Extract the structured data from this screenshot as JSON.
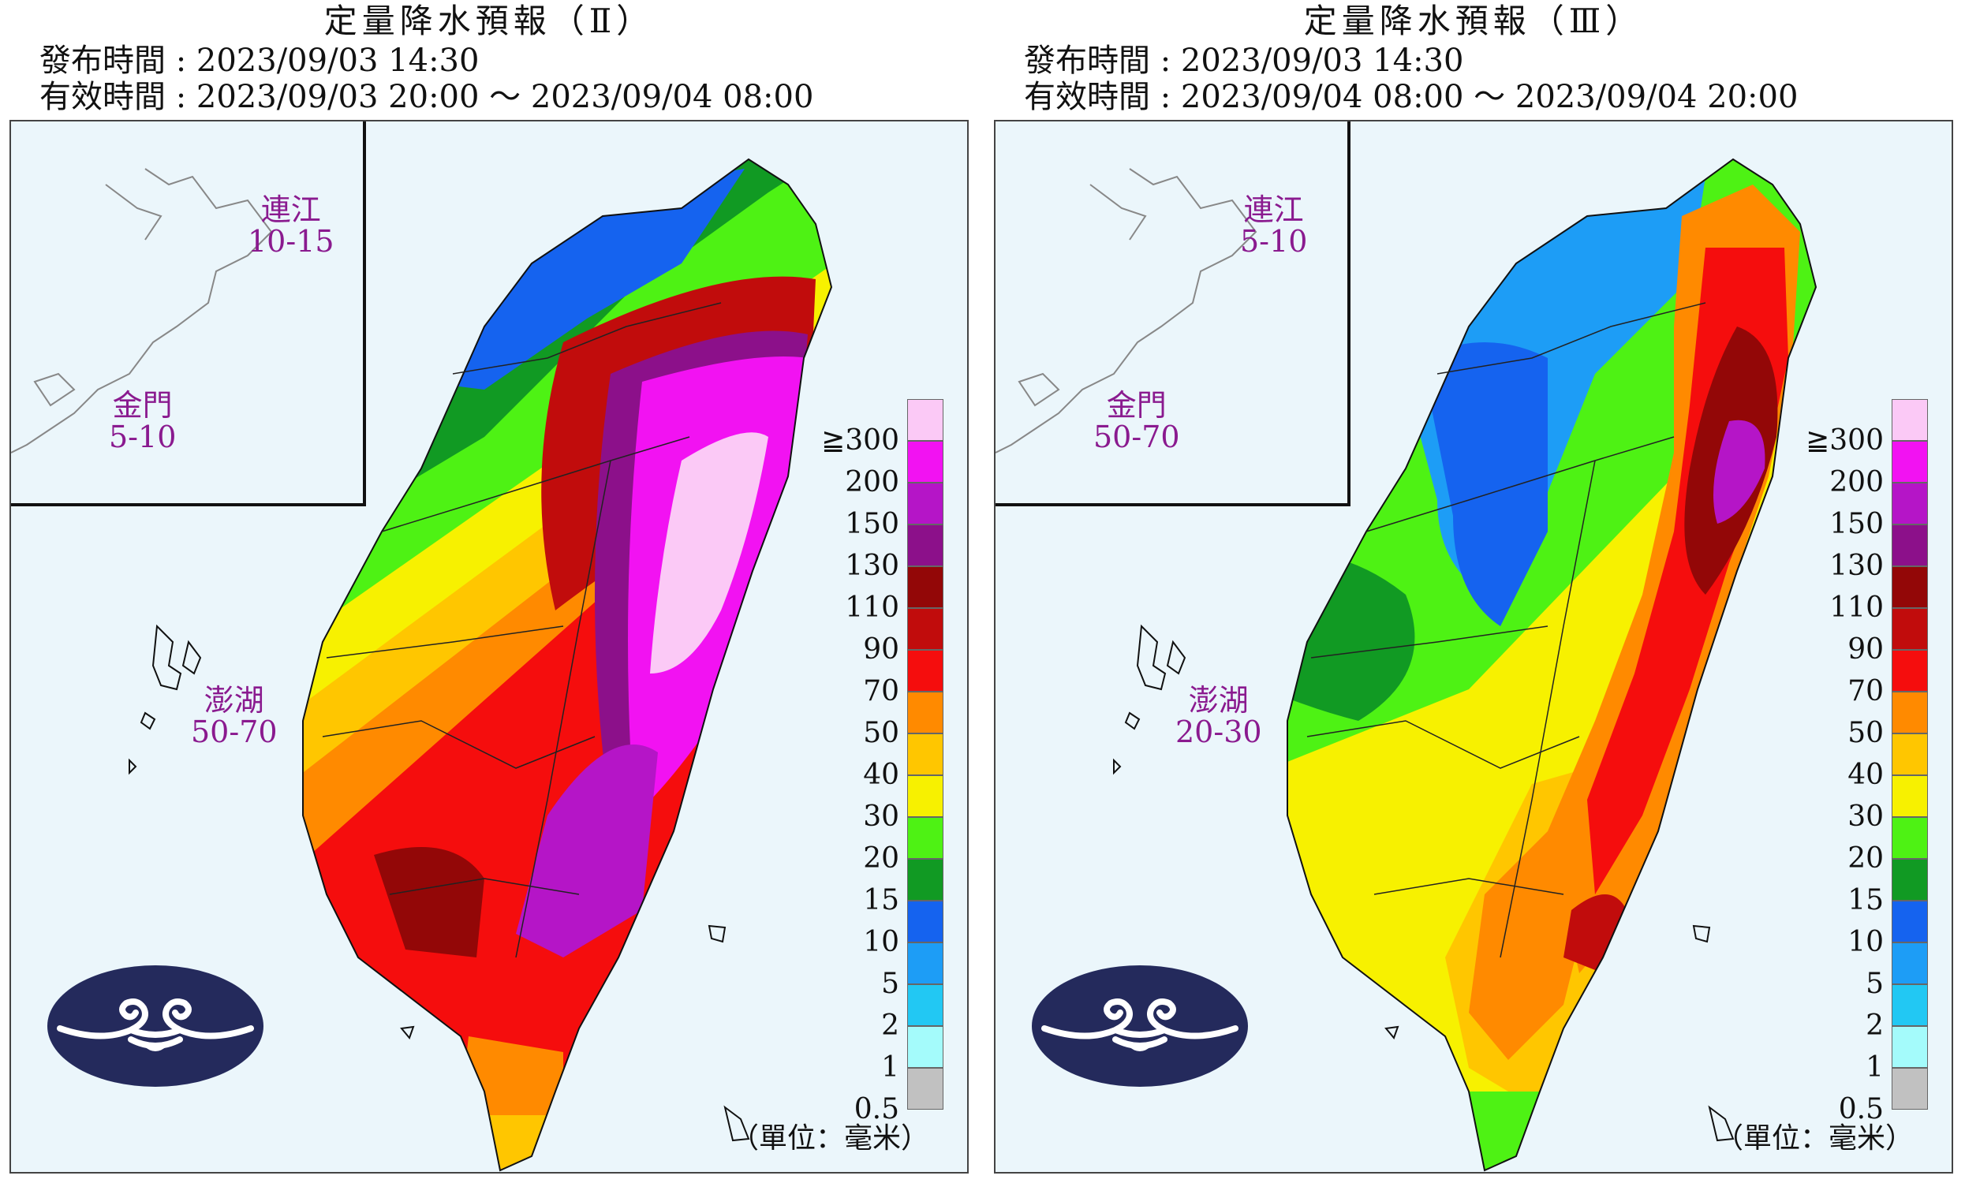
{
  "maps": [
    {
      "title": "定量降水預報（Ⅱ）",
      "issue": "發布時間 : 2023/09/03 14:30",
      "valid": "有效時間 : 2023/09/03 20:00 ～ 2023/09/04 08:00",
      "regions": [
        {
          "name": "連江",
          "value": "10-15"
        },
        {
          "name": "金門",
          "value": "5-10"
        },
        {
          "name": "澎湖",
          "value": "50-70"
        }
      ]
    },
    {
      "title": "定量降水預報（Ⅲ）",
      "issue": "發布時間 : 2023/09/03 14:30",
      "valid": "有效時間 : 2023/09/04 08:00 ～ 2023/09/04 20:00",
      "regions": [
        {
          "name": "連江",
          "value": "5-10"
        },
        {
          "name": "金門",
          "value": "50-70"
        },
        {
          "name": "澎湖",
          "value": "20-30"
        }
      ]
    }
  ],
  "legend": {
    "labels": [
      "≧300",
      "200",
      "150",
      "130",
      "110",
      "90",
      "70",
      "50",
      "40",
      "30",
      "20",
      "15",
      "10",
      "5",
      "2",
      "1",
      "0.5"
    ],
    "colors": [
      "#fbc9f6",
      "#f212f2",
      "#b515c7",
      "#8c108a",
      "#930707",
      "#c10c0c",
      "#f50d0d",
      "#ff8a00",
      "#ffc600",
      "#f7f100",
      "#4ef214",
      "#119a23",
      "#1563ef",
      "#1d9df6",
      "#22c8f3",
      "#a4fbfb",
      "#c1c1c1"
    ],
    "unit": "（單位：毫米）"
  },
  "colors": {
    "sea": "#ebf6fb",
    "region_label": "#8a1a8f",
    "logo": "#242a5c"
  }
}
